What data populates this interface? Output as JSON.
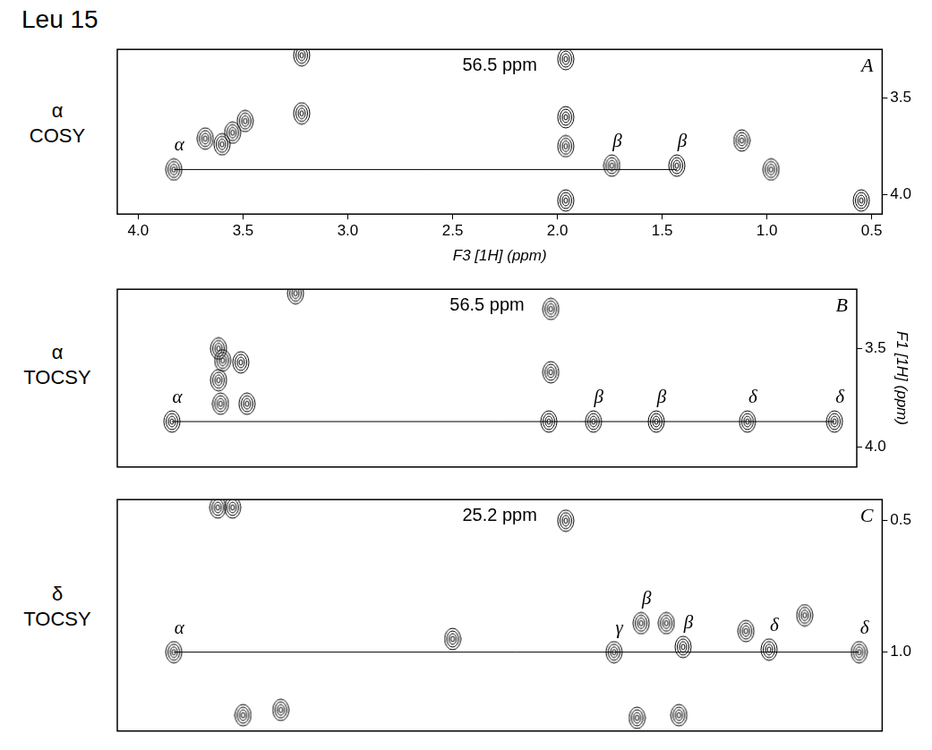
{
  "title": "Leu 15",
  "chart_data": [
    {
      "type": "scatter",
      "panel": "A",
      "row_label": "α COSY",
      "annotation": "56.5 ppm",
      "xlabel": "F3 [1H] (ppm)",
      "xlim": [
        4.1,
        0.45
      ],
      "xticks": [
        {
          "value": 4,
          "label": "4.0"
        },
        3.5,
        {
          "value": 3,
          "label": "3.0"
        },
        2.5,
        {
          "value": 2,
          "label": "2.0"
        },
        1.5,
        {
          "value": 1,
          "label": "1.0"
        },
        0.5
      ],
      "ylim": [
        4.1,
        3.25
      ],
      "yticks": [
        3.5,
        {
          "value": 4,
          "label": "4.0"
        }
      ],
      "grid": false,
      "peaks": [
        {
          "x": 3.83,
          "y": 3.87,
          "label": "α"
        },
        {
          "x": 3.68,
          "y": 3.71
        },
        {
          "x": 3.6,
          "y": 3.74
        },
        {
          "x": 3.55,
          "y": 3.68
        },
        {
          "x": 3.49,
          "y": 3.62
        },
        {
          "x": 3.22,
          "y": 3.58
        },
        {
          "x": 3.22,
          "y": 3.28
        },
        {
          "x": 1.96,
          "y": 3.3
        },
        {
          "x": 1.96,
          "y": 3.6
        },
        {
          "x": 1.96,
          "y": 3.75
        },
        {
          "x": 1.96,
          "y": 4.03
        },
        {
          "x": 1.74,
          "y": 3.85,
          "label": "β"
        },
        {
          "x": 1.43,
          "y": 3.85,
          "label": "β"
        },
        {
          "x": 1.12,
          "y": 3.72
        },
        {
          "x": 0.98,
          "y": 3.87
        },
        {
          "x": 0.55,
          "y": 4.03
        }
      ],
      "trace": {
        "x": [
          3.83,
          1.43
        ],
        "y": [
          3.87,
          3.87
        ]
      }
    },
    {
      "type": "scatter",
      "panel": "B",
      "row_label": "α TOCSY",
      "annotation": "56.5 ppm",
      "ylabel": "F1 [1H] (ppm)",
      "tick_labels": "y",
      "xlim": [
        4.1,
        0.45
      ],
      "ylim": [
        4.1,
        3.2
      ],
      "yticks": [
        3.5,
        {
          "value": 4,
          "label": "4.0"
        }
      ],
      "grid": false,
      "peaks": [
        {
          "x": 3.83,
          "y": 3.87,
          "label": "α"
        },
        {
          "x": 3.6,
          "y": 3.5
        },
        {
          "x": 3.58,
          "y": 3.56
        },
        {
          "x": 3.49,
          "y": 3.57
        },
        {
          "x": 3.6,
          "y": 3.66
        },
        {
          "x": 3.46,
          "y": 3.78
        },
        {
          "x": 3.59,
          "y": 3.78
        },
        {
          "x": 3.22,
          "y": 3.22
        },
        {
          "x": 1.96,
          "y": 3.3
        },
        {
          "x": 1.96,
          "y": 3.62
        },
        {
          "x": 1.97,
          "y": 3.87
        },
        {
          "x": 1.75,
          "y": 3.87,
          "label": "β"
        },
        {
          "x": 1.44,
          "y": 3.87,
          "label": "β"
        },
        {
          "x": 0.99,
          "y": 3.87,
          "label": "δ"
        },
        {
          "x": 0.56,
          "y": 3.87,
          "label": "δ"
        }
      ],
      "trace": {
        "x": [
          3.83,
          0.56
        ],
        "y": [
          3.87,
          3.87
        ]
      }
    },
    {
      "type": "scatter",
      "panel": "C",
      "row_label": "δ TOCSY",
      "annotation": "25.2 ppm",
      "tick_labels": "y",
      "xlim": [
        4.1,
        0.45
      ],
      "ylim": [
        1.3,
        0.42
      ],
      "yticks": [
        0.5,
        {
          "value": 1,
          "label": "1.0"
        }
      ],
      "grid": false,
      "peaks": [
        {
          "x": 3.83,
          "y": 1.0,
          "label": "α"
        },
        {
          "x": 3.62,
          "y": 0.45
        },
        {
          "x": 3.55,
          "y": 0.45
        },
        {
          "x": 3.5,
          "y": 1.24
        },
        {
          "x": 3.32,
          "y": 1.22
        },
        {
          "x": 2.5,
          "y": 0.95
        },
        {
          "x": 1.96,
          "y": 0.5
        },
        {
          "x": 1.73,
          "y": 1.0,
          "label": "γ"
        },
        {
          "x": 1.6,
          "y": 0.89,
          "label": "β"
        },
        {
          "x": 1.48,
          "y": 0.89
        },
        {
          "x": 1.4,
          "y": 0.98,
          "label": "β"
        },
        {
          "x": 1.62,
          "y": 1.25
        },
        {
          "x": 1.42,
          "y": 1.24
        },
        {
          "x": 1.1,
          "y": 0.92
        },
        {
          "x": 0.82,
          "y": 0.86
        },
        {
          "x": 0.99,
          "y": 0.99,
          "label": "δ"
        },
        {
          "x": 0.56,
          "y": 1.0,
          "label": "δ"
        }
      ],
      "trace": {
        "x": [
          3.83,
          0.56
        ],
        "y": [
          1.0,
          1.0
        ]
      }
    }
  ]
}
